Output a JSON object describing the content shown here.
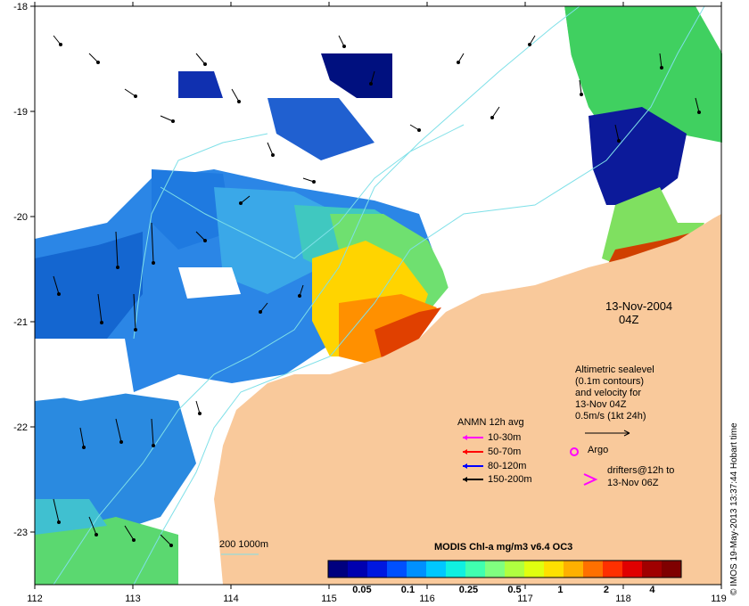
{
  "map": {
    "x_ticks": [
      "112",
      "113",
      "114",
      "115",
      "116",
      "117",
      "118",
      "119"
    ],
    "y_ticks": [
      "-18",
      "-19",
      "-20",
      "-21",
      "-22",
      "-23"
    ],
    "x_range": [
      112,
      119
    ],
    "y_range": [
      -23.5,
      -18
    ],
    "land_color": "#f9c99b",
    "contour_color": "#7fe0e8"
  },
  "date_line1": "13-Nov-2004",
  "date_line2": "04Z",
  "sealevel_note": {
    "line1": "Altimetric sealevel",
    "line2": "(0.1m contours)",
    "line3": "and velocity for",
    "line4": "13-Nov 04Z",
    "line5": "0.5m/s (1kt 24h)"
  },
  "anmn": {
    "title": "ANMN 12h avg",
    "items": [
      {
        "label": "10-30m",
        "color": "#ff00ff"
      },
      {
        "label": "50-70m",
        "color": "#ff0000"
      },
      {
        "label": "80-120m",
        "color": "#0000ff"
      },
      {
        "label": "150-200m",
        "color": "#000000"
      }
    ]
  },
  "argo_label": "Argo",
  "argo_color": "#ff00ff",
  "drifters": {
    "line1": "drifters@12h to",
    "line2": "13-Nov 06Z",
    "color": "#ff00ff"
  },
  "bathy_label": "200  1000m",
  "colorbar": {
    "title": "MODIS Chl-a mg/m3 v6.4 OC3",
    "ticks": [
      "0.05",
      "0.1",
      "0.25",
      "0.5",
      "1",
      "2",
      "4"
    ],
    "colors": [
      "#00007f",
      "#0000b0",
      "#0018e0",
      "#0050ff",
      "#0090ff",
      "#00c8ff",
      "#10f0e0",
      "#40ffb0",
      "#80ff80",
      "#b0ff40",
      "#e0ff10",
      "#ffe000",
      "#ffb000",
      "#ff7000",
      "#ff3000",
      "#e00000",
      "#a00000",
      "#7f0000"
    ]
  },
  "credit": "© IMOS 19-May-2013 13:37:44 Hobart time"
}
